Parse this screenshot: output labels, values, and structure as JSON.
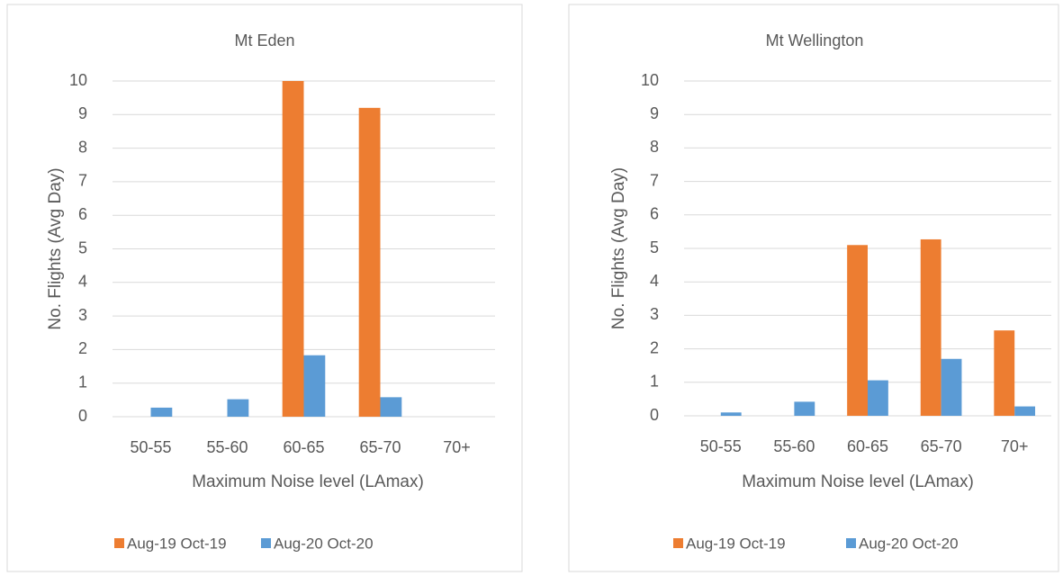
{
  "chart_data": [
    {
      "type": "bar",
      "title": "Mt Eden",
      "x_label": "Maximum Noise level (LAmax)",
      "y_label": "No. Flights (Avg Day)",
      "categories": [
        "50-55",
        "55-60",
        "60-65",
        "65-70",
        "70+"
      ],
      "series": [
        {
          "name": "Aug-19 Oct-19",
          "color": "#ed7d31",
          "values": [
            0,
            0,
            10,
            9.2,
            0
          ]
        },
        {
          "name": "Aug-20 Oct-20",
          "color": "#5b9bd5",
          "values": [
            0.27,
            0.52,
            1.83,
            0.58,
            0
          ]
        }
      ],
      "ylim": [
        0,
        10
      ],
      "yticks": [
        0,
        1,
        2,
        3,
        4,
        5,
        6,
        7,
        8,
        9,
        10
      ],
      "grid": true,
      "legend": "bottom"
    },
    {
      "type": "bar",
      "title": "Mt Wellington",
      "x_label": "Maximum Noise level (LAmax)",
      "y_label": "No. Flights (Avg Day)",
      "categories": [
        "50-55",
        "55-60",
        "60-65",
        "65-70",
        "70+"
      ],
      "series": [
        {
          "name": "Aug-19 Oct-19",
          "color": "#ed7d31",
          "values": [
            0,
            0,
            5.1,
            5.27,
            2.55
          ]
        },
        {
          "name": "Aug-20 Oct-20",
          "color": "#5b9bd5",
          "values": [
            0.1,
            0.42,
            1.06,
            1.7,
            0.28
          ]
        }
      ],
      "ylim": [
        0,
        10
      ],
      "yticks": [
        0,
        1,
        2,
        3,
        4,
        5,
        6,
        7,
        8,
        9,
        10
      ],
      "grid": true,
      "legend": "bottom"
    }
  ]
}
